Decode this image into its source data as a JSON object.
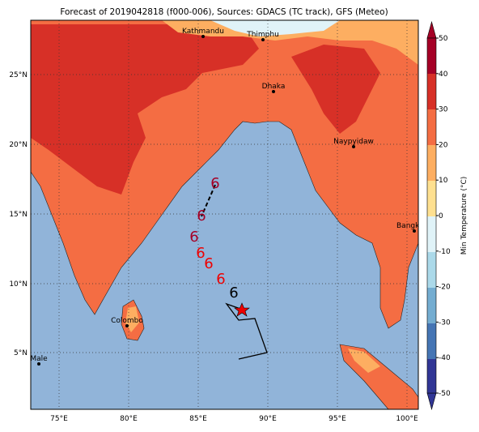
{
  "title": "Forecast of 2019042818 (f000-006), Sources: GDACS (TC track), GFS (Meteo)",
  "cities": [
    "Kathmandu",
    "Thimphu",
    "Dhaka",
    "Naypyidaw",
    "Bangko",
    "Colombo",
    "Male"
  ],
  "lon_ticks": [
    "75°E",
    "80°E",
    "85°E",
    "90°E",
    "95°E",
    "100°E"
  ],
  "lat_ticks": [
    "25°N",
    "20°N",
    "15°N",
    "10°N",
    "5°N"
  ],
  "colorbar": {
    "label": "Min Temperature (°C)",
    "ticks": [
      50,
      40,
      30,
      20,
      10,
      0,
      -10,
      -20,
      -30,
      -40,
      -50
    ]
  }
}
